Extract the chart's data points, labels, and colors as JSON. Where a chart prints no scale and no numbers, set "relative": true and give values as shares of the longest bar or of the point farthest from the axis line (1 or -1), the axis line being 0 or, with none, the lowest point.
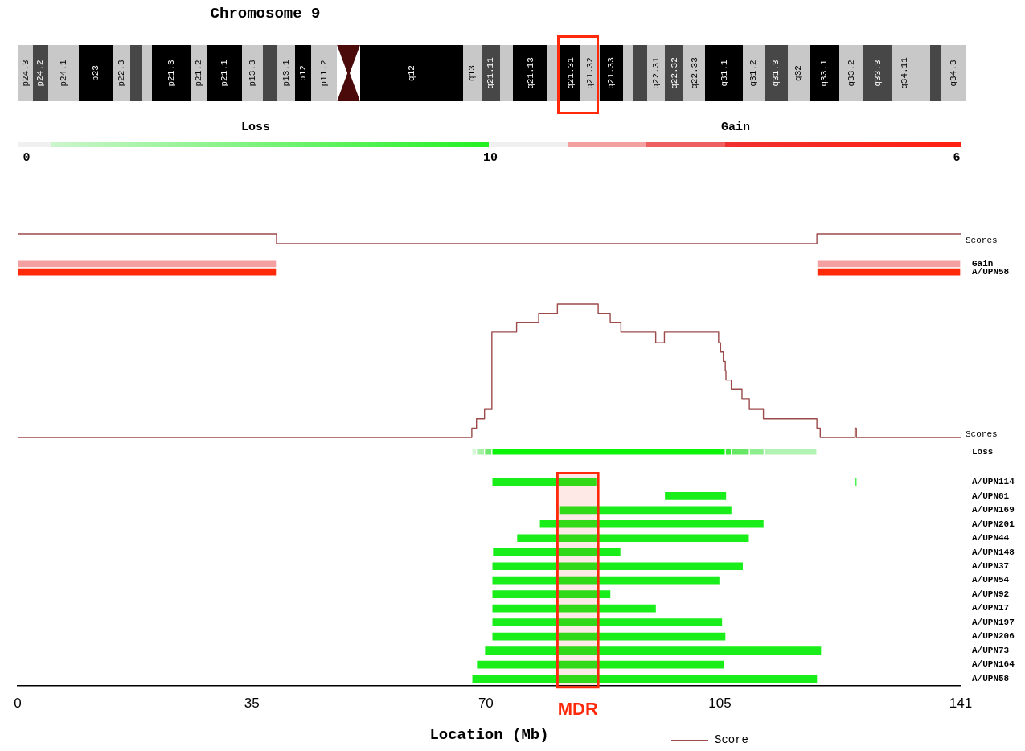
{
  "chart_data": [
    {
      "type": "other",
      "title": "Chromosome 9",
      "annotations": [
        "p24.3",
        "p24.2",
        "p24.1",
        "p23",
        "p22.3",
        "p21.3",
        "p21.2",
        "p21.1",
        "p13.3",
        "p13.1",
        "p12",
        "p11.2",
        "q12",
        "q13",
        "q21.11",
        "q21.13",
        "q21.31",
        "q21.32",
        "q21.33",
        "q22.31",
        "q22.32",
        "q22.33",
        "q31.1",
        "q31.2",
        "q31.3",
        "q32",
        "q33.1",
        "q33.2",
        "q33.3",
        "q34.11",
        "q34.3",
        "Loss",
        "Gain",
        "0",
        "10",
        "6"
      ]
    },
    {
      "type": "step",
      "relative": true,
      "ylabel": "Scores",
      "xlim": [
        0,
        141
      ],
      "tick_labels": false,
      "series": [
        {
          "color": "#9c4a4a",
          "x": [
            0,
            38.7,
            119.5,
            141
          ],
          "values": [
            1,
            0,
            1,
            1
          ]
        }
      ]
    },
    {
      "type": "bar",
      "orientation": "horizontal",
      "categories": [
        "Gain",
        "A/UPN58"
      ],
      "xlim": [
        0,
        141
      ],
      "tick_labels": "y",
      "series": [
        {
          "colors": [
            "#f4a0a0",
            "#ff2a0a"
          ],
          "base": [
            0,
            0
          ],
          "values": [
            38.7,
            38.7
          ]
        },
        {
          "colors": [
            "#f4a0a0",
            "#ff2a0a"
          ],
          "base": [
            119.5,
            119.5
          ],
          "values": [
            21.5,
            21.5
          ]
        }
      ]
    },
    {
      "type": "step",
      "relative": true,
      "ylabel": "Scores",
      "xlim": [
        0,
        141
      ],
      "tick_labels": false,
      "legend": "bottom",
      "series": [
        {
          "name": "Score",
          "color": "#9c4a4a",
          "x": [
            0,
            67.9,
            68.6,
            69.8,
            70.9,
            74.6,
            77.9,
            80.7,
            86.8,
            88.6,
            90.2,
            95.4,
            96.7,
            104.8,
            105.1,
            105.5,
            105.8,
            105.9,
            106.7,
            108.3,
            109.4,
            111.5,
            119.5,
            120.0,
            125.2,
            125.4,
            141
          ],
          "values": [
            0,
            0.07,
            0.14,
            0.21,
            0.79,
            0.86,
            0.93,
            1,
            0.93,
            0.86,
            0.79,
            0.71,
            0.79,
            0.71,
            0.64,
            0.57,
            0.5,
            0.43,
            0.36,
            0.29,
            0.21,
            0.14,
            0.07,
            0,
            0.07,
            0,
            0
          ]
        }
      ]
    },
    {
      "type": "bar",
      "orientation": "horizontal",
      "categories": [
        "Loss"
      ],
      "xlim": [
        0,
        141
      ],
      "tick_labels": "y",
      "series": [
        {
          "color": "#d4f7d4",
          "base": [
            67.9
          ],
          "values": [
            0.7
          ]
        },
        {
          "color": "#a6f0a6",
          "base": [
            68.6
          ],
          "values": [
            1.2
          ]
        },
        {
          "color": "#6ee86e",
          "base": [
            69.8
          ],
          "values": [
            1.1
          ]
        },
        {
          "color": "#0af50a",
          "base": [
            70.9
          ],
          "values": [
            34.9
          ]
        },
        {
          "color": "#3cea3c",
          "base": [
            105.8
          ],
          "values": [
            0.9
          ]
        },
        {
          "color": "#66e866",
          "base": [
            106.7
          ],
          "values": [
            2.7
          ]
        },
        {
          "color": "#8eee8e",
          "base": [
            109.4
          ],
          "values": [
            2.2
          ]
        },
        {
          "color": "#b2f2b2",
          "base": [
            111.6
          ],
          "values": [
            7.9
          ]
        }
      ]
    },
    {
      "type": "bar",
      "orientation": "horizontal",
      "categories": [
        "A/UPN114",
        "A/UPN81",
        "A/UPN169",
        "A/UPN201",
        "A/UPN44",
        "A/UPN148",
        "A/UPN37",
        "A/UPN54",
        "A/UPN92",
        "A/UPN17",
        "A/UPN197",
        "A/UPN206",
        "A/UPN73",
        "A/UPN164",
        "A/UPN58"
      ],
      "xlim": [
        0,
        141
      ],
      "xticks": [
        0,
        35,
        70,
        105,
        141
      ],
      "xlabel": "Location (Mb)",
      "bands": [
        {
          "axis": "x",
          "from": 80.7,
          "to": 86.8,
          "label": "MDR",
          "color": "#ff2a0a"
        }
      ],
      "series": [
        {
          "color": "#1aee1a",
          "base": [
            70.9,
            96.7,
            80.9,
            78.0,
            74.6,
            71.0,
            70.9,
            70.9,
            70.9,
            70.9,
            70.9,
            70.9,
            69.8,
            68.6,
            67.9
          ],
          "values": [
            15.7,
            9.3,
            25.9,
            33.6,
            34.8,
            19.2,
            37.6,
            34.1,
            17.8,
            24.6,
            34.5,
            35.0,
            50.4,
            37.1,
            51.7
          ]
        },
        {
          "color": "#1aee1a",
          "base": [
            125.2,
            null,
            null,
            null,
            null,
            null,
            null,
            null,
            null,
            null,
            null,
            null,
            null,
            null,
            null
          ],
          "values": [
            0.3,
            null,
            null,
            null,
            null,
            null,
            null,
            null,
            null,
            null,
            null,
            null,
            null,
            null,
            null
          ]
        }
      ]
    }
  ]
}
